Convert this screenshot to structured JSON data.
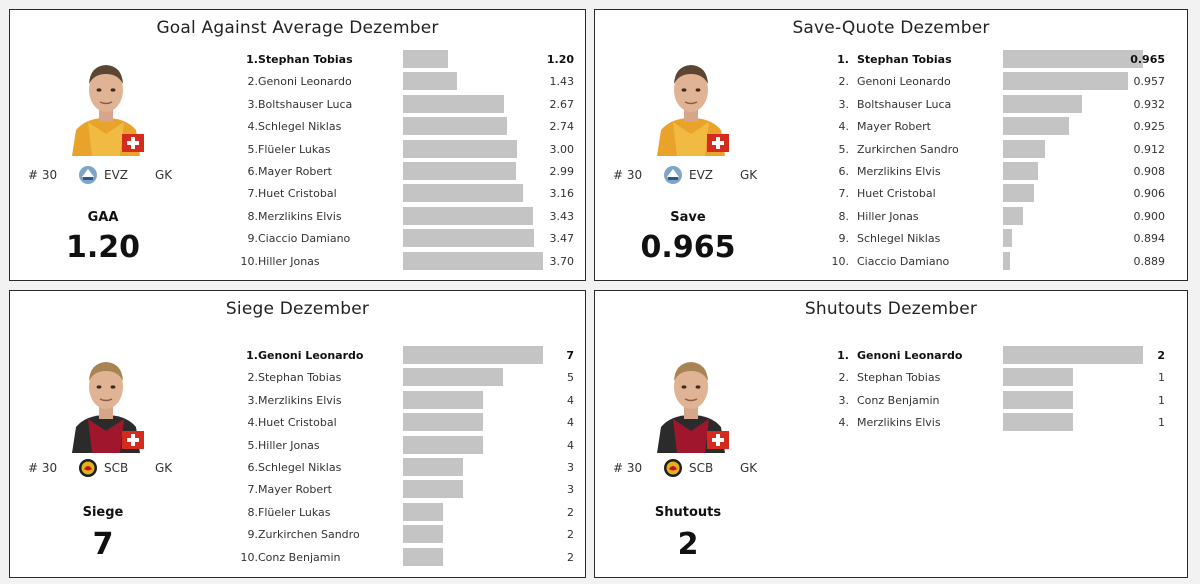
{
  "colors": {
    "bar": "#c4c4c4",
    "panel_border": "#2a2a2a",
    "text": "#222222"
  },
  "panels": [
    {
      "title": "Goal Against Average Dezember",
      "player": {
        "number": "# 30",
        "team": "EVZ",
        "position": "GK",
        "team_logo": "evz-logo-icon",
        "flag": "swiss-flag-icon",
        "jersey": "yellow"
      },
      "stat_label": "GAA",
      "stat_value": "1.20",
      "rows": [
        {
          "rank": "1.",
          "name": "Stephan Tobias",
          "value": "1.20"
        },
        {
          "rank": "2.",
          "name": "Genoni Leonardo",
          "value": "1.43"
        },
        {
          "rank": "3.",
          "name": "Boltshauser Luca",
          "value": "2.67"
        },
        {
          "rank": "4.",
          "name": "Schlegel Niklas",
          "value": "2.74"
        },
        {
          "rank": "5.",
          "name": "Flüeler Lukas",
          "value": "3.00"
        },
        {
          "rank": "6.",
          "name": "Mayer Robert",
          "value": "2.99"
        },
        {
          "rank": "7.",
          "name": "Huet Cristobal",
          "value": "3.16"
        },
        {
          "rank": "8.",
          "name": "Merzlikins Elvis",
          "value": "3.43"
        },
        {
          "rank": "9.",
          "name": "Ciaccio Damiano",
          "value": "3.47"
        },
        {
          "rank": "10.",
          "name": "Hiller Jonas",
          "value": "3.70"
        }
      ]
    },
    {
      "title": "Save-Quote Dezember",
      "player": {
        "number": "# 30",
        "team": "EVZ",
        "position": "GK",
        "team_logo": "evz-logo-icon",
        "flag": "swiss-flag-icon",
        "jersey": "yellow"
      },
      "stat_label": "Save",
      "stat_value": "0.965",
      "rows": [
        {
          "rank": "1.",
          "name": "Stephan Tobias",
          "value": "0.965"
        },
        {
          "rank": "2.",
          "name": "Genoni Leonardo",
          "value": "0.957"
        },
        {
          "rank": "3.",
          "name": "Boltshauser Luca",
          "value": "0.932"
        },
        {
          "rank": "4.",
          "name": "Mayer Robert",
          "value": "0.925"
        },
        {
          "rank": "5.",
          "name": "Zurkirchen Sandro",
          "value": "0.912"
        },
        {
          "rank": "6.",
          "name": "Merzlikins Elvis",
          "value": "0.908"
        },
        {
          "rank": "7.",
          "name": "Huet Cristobal",
          "value": "0.906"
        },
        {
          "rank": "8.",
          "name": "Hiller Jonas",
          "value": "0.900"
        },
        {
          "rank": "9.",
          "name": "Schlegel Niklas",
          "value": "0.894"
        },
        {
          "rank": "10.",
          "name": "Ciaccio Damiano",
          "value": "0.889"
        }
      ]
    },
    {
      "title": "Siege Dezember",
      "player": {
        "number": "# 30",
        "team": "SCB",
        "position": "GK",
        "team_logo": "scb-logo-icon",
        "flag": "swiss-flag-icon",
        "jersey": "black"
      },
      "stat_label": "Siege",
      "stat_value": "7",
      "rows": [
        {
          "rank": "1.",
          "name": "Genoni Leonardo",
          "value": "7"
        },
        {
          "rank": "2.",
          "name": "Stephan Tobias",
          "value": "5"
        },
        {
          "rank": "3.",
          "name": "Merzlikins Elvis",
          "value": "4"
        },
        {
          "rank": "4.",
          "name": "Huet Cristobal",
          "value": "4"
        },
        {
          "rank": "5.",
          "name": "Hiller Jonas",
          "value": "4"
        },
        {
          "rank": "6.",
          "name": "Schlegel Niklas",
          "value": "3"
        },
        {
          "rank": "7.",
          "name": "Mayer Robert",
          "value": "3"
        },
        {
          "rank": "8.",
          "name": "Flüeler Lukas",
          "value": "2"
        },
        {
          "rank": "9.",
          "name": "Zurkirchen Sandro",
          "value": "2"
        },
        {
          "rank": "10.",
          "name": "Conz Benjamin",
          "value": "2"
        }
      ]
    },
    {
      "title": "Shutouts Dezember",
      "player": {
        "number": "# 30",
        "team": "SCB",
        "position": "GK",
        "team_logo": "scb-logo-icon",
        "flag": "swiss-flag-icon",
        "jersey": "black"
      },
      "stat_label": "Shutouts",
      "stat_value": "2",
      "rows": [
        {
          "rank": "1.",
          "name": "Genoni Leonardo",
          "value": "2"
        },
        {
          "rank": "2.",
          "name": "Stephan Tobias",
          "value": "1"
        },
        {
          "rank": "3.",
          "name": "Conz Benjamin",
          "value": "1"
        },
        {
          "rank": "4.",
          "name": "Merzlikins Elvis",
          "value": "1"
        }
      ]
    }
  ],
  "chart_data": [
    {
      "type": "bar",
      "orientation": "horizontal",
      "title": "Goal Against Average Dezember",
      "categories": [
        "Stephan Tobias",
        "Genoni Leonardo",
        "Boltshauser Luca",
        "Schlegel Niklas",
        "Flüeler Lukas",
        "Mayer Robert",
        "Huet Cristobal",
        "Merzlikins Elvis",
        "Ciaccio Damiano",
        "Hiller Jonas"
      ],
      "values": [
        1.2,
        1.43,
        2.67,
        2.74,
        3.0,
        2.99,
        3.16,
        3.43,
        3.47,
        3.7
      ],
      "xlim": [
        0,
        3.7
      ],
      "grid": false,
      "xlabel": "",
      "ylabel": ""
    },
    {
      "type": "bar",
      "orientation": "horizontal",
      "title": "Save-Quote Dezember",
      "categories": [
        "Stephan Tobias",
        "Genoni Leonardo",
        "Boltshauser Luca",
        "Mayer Robert",
        "Zurkirchen Sandro",
        "Merzlikins Elvis",
        "Huet Cristobal",
        "Hiller Jonas",
        "Schlegel Niklas",
        "Ciaccio Damiano"
      ],
      "values": [
        0.965,
        0.957,
        0.932,
        0.925,
        0.912,
        0.908,
        0.906,
        0.9,
        0.894,
        0.889
      ],
      "xlim": [
        0.889,
        0.965
      ],
      "grid": false,
      "xlabel": "",
      "ylabel": ""
    },
    {
      "type": "bar",
      "orientation": "horizontal",
      "title": "Siege Dezember",
      "categories": [
        "Genoni Leonardo",
        "Stephan Tobias",
        "Merzlikins Elvis",
        "Huet Cristobal",
        "Hiller Jonas",
        "Schlegel Niklas",
        "Mayer Robert",
        "Flüeler Lukas",
        "Zurkirchen Sandro",
        "Conz Benjamin"
      ],
      "values": [
        7,
        5,
        4,
        4,
        4,
        3,
        3,
        2,
        2,
        2
      ],
      "xlim": [
        0,
        7
      ],
      "grid": false,
      "xlabel": "",
      "ylabel": ""
    },
    {
      "type": "bar",
      "orientation": "horizontal",
      "title": "Shutouts Dezember",
      "categories": [
        "Genoni Leonardo",
        "Stephan Tobias",
        "Conz Benjamin",
        "Merzlikins Elvis"
      ],
      "values": [
        2,
        1,
        1,
        1
      ],
      "xlim": [
        0,
        2
      ],
      "grid": false,
      "xlabel": "",
      "ylabel": ""
    }
  ]
}
